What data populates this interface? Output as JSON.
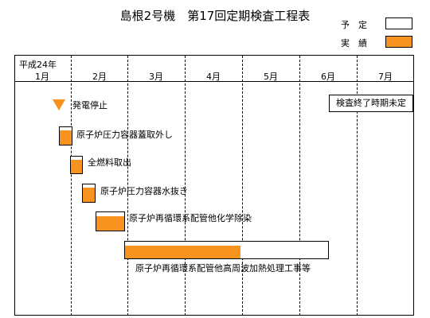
{
  "title": "島根2号機　第17回定期検査工程表",
  "legend": {
    "planned": "予　定",
    "actual": "実　績",
    "actual_color": "#f7931e"
  },
  "era": "平成24年",
  "months": [
    "1月",
    "2月",
    "3月",
    "4月",
    "5月",
    "6月",
    "7月"
  ],
  "status_note": "検査終了時期未定",
  "milestone": {
    "label": "発電停止",
    "icon": "triangle-down-icon"
  },
  "tasks": [
    {
      "label": "原子炉圧力容器蓋取外し"
    },
    {
      "label": "全燃料取出"
    },
    {
      "label": "原子炉圧力容器水抜き"
    },
    {
      "label": "原子炉再循環系配管他化学除染"
    },
    {
      "label": "原子炉再循環系配管他高周波加熱処理工事等"
    }
  ]
}
